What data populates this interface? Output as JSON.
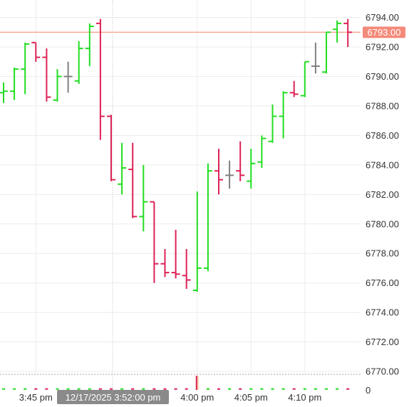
{
  "chart_data": {
    "type": "ohlc",
    "title": "",
    "xlabel": "",
    "ylabel": "",
    "ylim": [
      6769.0,
      6795.0
    ],
    "y_ticks": [
      6770.0,
      6772.0,
      6774.0,
      6776.0,
      6778.0,
      6780.0,
      6782.0,
      6784.0,
      6786.0,
      6788.0,
      6790.0,
      6792.0,
      6794.0
    ],
    "y_tick_labels": [
      "6770.00",
      "6772.00",
      "6774.00",
      "6776.00",
      "6778.00",
      "6780.00",
      "6782.00",
      "6784.00",
      "6786.00",
      "6788.00",
      "6790.00",
      "6792.00",
      "6794.00"
    ],
    "x_range": [
      "3:42 pm",
      "4:13 pm"
    ],
    "x_tick_labels": [
      {
        "x": "3:45 pm",
        "label": "3:45 pm"
      },
      {
        "x": "4:00 pm",
        "label": "4:00 pm"
      },
      {
        "x": "4:05 pm",
        "label": "4:05 pm"
      },
      {
        "x": "4:10 pm",
        "label": "4:10 pm"
      }
    ],
    "crosshair_time_label": "12/17/2025 3:52:00 pm",
    "last_price": 6793.0,
    "last_price_label": "6793.00",
    "volume_axis_label": "0",
    "colors": {
      "up": "#22dd22",
      "down": "#dd2255",
      "flat": "#808080",
      "last_price_line": "#f4a48c",
      "last_price_tag": "#f48a7a",
      "crosshair_badge": "#8a8a8a",
      "grid": "#ececec"
    },
    "bars": [
      {
        "t": "3:42 pm",
        "o": 6788.9,
        "h": 6789.6,
        "l": 6788.2,
        "c": 6789.0
      },
      {
        "t": "3:43 pm",
        "o": 6789.0,
        "h": 6790.6,
        "l": 6788.4,
        "c": 6790.5
      },
      {
        "t": "3:44 pm",
        "o": 6790.5,
        "h": 6792.3,
        "l": 6788.8,
        "c": 6792.2
      },
      {
        "t": "3:45 pm",
        "o": 6792.3,
        "h": 6792.3,
        "l": 6791.0,
        "c": 6791.3
      },
      {
        "t": "3:46 pm",
        "o": 6791.3,
        "h": 6791.9,
        "l": 6788.3,
        "c": 6788.6
      },
      {
        "t": "3:47 pm",
        "o": 6788.4,
        "h": 6790.5,
        "l": 6788.3,
        "c": 6790.0
      },
      {
        "t": "3:48 pm",
        "o": 6790.0,
        "h": 6791.0,
        "l": 6788.9,
        "c": 6790.0
      },
      {
        "t": "3:49 pm",
        "o": 6789.7,
        "h": 6792.4,
        "l": 6789.5,
        "c": 6791.9
      },
      {
        "t": "3:50 pm",
        "o": 6791.9,
        "h": 6793.6,
        "l": 6790.7,
        "c": 6793.4
      },
      {
        "t": "3:51 pm",
        "o": 6793.6,
        "h": 6793.9,
        "l": 6785.7,
        "c": 6787.3
      },
      {
        "t": "3:52 pm",
        "o": 6787.3,
        "h": 6787.4,
        "l": 6782.9,
        "c": 6783.0
      },
      {
        "t": "3:53 pm",
        "o": 6782.7,
        "h": 6785.5,
        "l": 6782.0,
        "c": 6783.8
      },
      {
        "t": "3:54 pm",
        "o": 6783.7,
        "h": 6785.5,
        "l": 6780.4,
        "c": 6780.5
      },
      {
        "t": "3:55 pm",
        "o": 6780.5,
        "h": 6784.0,
        "l": 6779.5,
        "c": 6781.5
      },
      {
        "t": "3:56 pm",
        "o": 6781.5,
        "h": 6781.5,
        "l": 6776.0,
        "c": 6777.3
      },
      {
        "t": "3:57 pm",
        "o": 6777.3,
        "h": 6778.3,
        "l": 6776.4,
        "c": 6776.7
      },
      {
        "t": "3:58 pm",
        "o": 6776.7,
        "h": 6779.6,
        "l": 6776.3,
        "c": 6776.6
      },
      {
        "t": "3:59 pm",
        "o": 6776.5,
        "h": 6778.3,
        "l": 6775.6,
        "c": 6776.2
      },
      {
        "t": "4:00 pm",
        "o": 6775.5,
        "h": 6782.2,
        "l": 6775.4,
        "c": 6777.0
      },
      {
        "t": "4:01 pm",
        "o": 6777.0,
        "h": 6784.1,
        "l": 6776.8,
        "c": 6783.6
      },
      {
        "t": "4:02 pm",
        "o": 6783.6,
        "h": 6785.1,
        "l": 6782.0,
        "c": 6783.0
      },
      {
        "t": "4:03 pm",
        "o": 6783.3,
        "h": 6784.3,
        "l": 6782.4,
        "c": 6783.3
      },
      {
        "t": "4:04 pm",
        "o": 6783.6,
        "h": 6785.6,
        "l": 6782.9,
        "c": 6783.3
      },
      {
        "t": "4:05 pm",
        "o": 6782.9,
        "h": 6785.1,
        "l": 6782.4,
        "c": 6784.1
      },
      {
        "t": "4:06 pm",
        "o": 6784.2,
        "h": 6786.0,
        "l": 6783.8,
        "c": 6785.8
      },
      {
        "t": "4:07 pm",
        "o": 6785.6,
        "h": 6788.1,
        "l": 6785.5,
        "c": 6787.3
      },
      {
        "t": "4:08 pm",
        "o": 6787.3,
        "h": 6789.0,
        "l": 6785.8,
        "c": 6788.9
      },
      {
        "t": "4:09 pm",
        "o": 6788.9,
        "h": 6789.7,
        "l": 6788.6,
        "c": 6788.8
      },
      {
        "t": "4:10 pm",
        "o": 6788.7,
        "h": 6791.0,
        "l": 6788.6,
        "c": 6791.0
      },
      {
        "t": "4:11 pm",
        "o": 6790.7,
        "h": 6792.3,
        "l": 6790.2,
        "c": 6790.7
      },
      {
        "t": "4:12 pm",
        "o": 6790.3,
        "h": 6793.0,
        "l": 6790.2,
        "c": 6793.0
      },
      {
        "t": "4:13 pm",
        "o": 6793.2,
        "h": 6793.8,
        "l": 6792.3,
        "c": 6793.6
      },
      {
        "t": "4:14 pm",
        "o": 6793.6,
        "h": 6793.9,
        "l": 6792.0,
        "c": 6793.0
      }
    ]
  }
}
